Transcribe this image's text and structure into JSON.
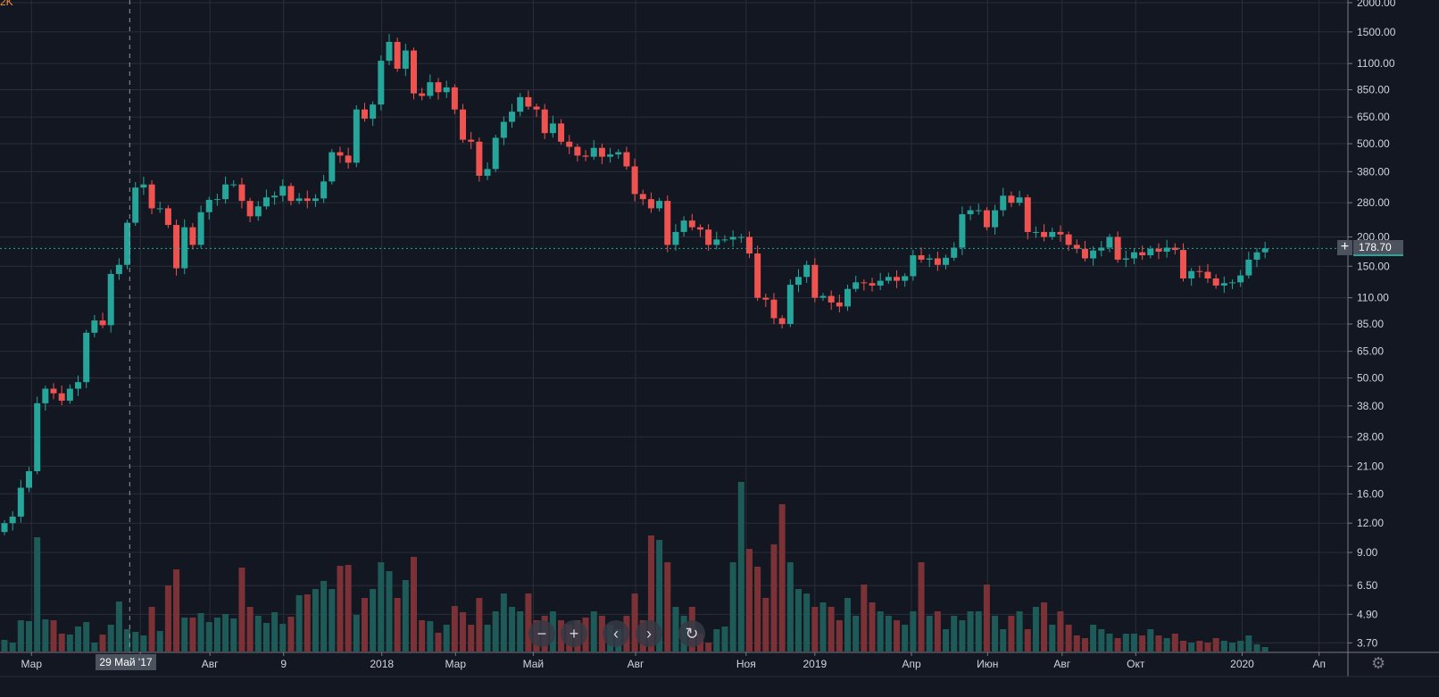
{
  "symbol_label": "2K",
  "colors": {
    "background": "#131722",
    "grid": "#2a2e39",
    "up": "#26a69a",
    "down": "#ef5350",
    "up_volume": "#1e5a57",
    "down_volume": "#7a3236",
    "axis_text": "#d1d4dc"
  },
  "chart_data": {
    "type": "candlestick",
    "scale": "log",
    "interval": "weekly",
    "ylim": [
      3.4,
      2050
    ],
    "close": [
      12,
      12.8,
      17,
      20,
      39,
      45,
      43,
      40,
      45,
      48,
      78,
      88,
      84,
      139,
      152,
      230,
      325,
      335,
      265,
      265,
      225,
      147,
      220,
      185,
      255,
      288,
      290,
      335,
      335,
      285,
      245,
      270,
      295,
      300,
      330,
      285,
      292,
      285,
      292,
      345,
      460,
      445,
      415,
      700,
      640,
      735,
      1130,
      1360,
      1045,
      1250,
      820,
      800,
      915,
      830,
      870,
      700,
      520,
      510,
      365,
      390,
      530,
      620,
      685,
      790,
      720,
      700,
      555,
      610,
      510,
      485,
      445,
      440,
      480,
      440,
      450,
      460,
      400,
      305,
      290,
      265,
      285,
      185,
      210,
      235,
      220,
      215,
      185,
      195,
      195,
      200,
      200,
      170,
      110,
      108,
      90,
      85,
      125,
      135,
      152,
      110,
      112,
      105,
      101,
      120,
      128,
      127,
      124,
      130,
      135,
      130,
      136,
      167,
      160,
      162,
      152,
      163,
      180,
      250,
      260,
      260,
      220,
      260,
      300,
      280,
      295,
      210,
      210,
      200,
      210,
      205,
      185,
      178,
      162,
      175,
      180,
      200,
      160,
      162,
      172,
      167,
      178,
      173,
      180,
      176,
      133,
      143,
      142,
      133,
      124,
      127,
      128,
      137,
      160,
      172,
      178.7
    ],
    "first_open": 11,
    "volume": [
      13,
      10,
      35,
      34,
      128,
      36,
      35,
      20,
      19,
      28,
      33,
      10,
      19,
      30,
      56,
      25,
      22,
      18,
      50,
      23,
      74,
      92,
      38,
      38,
      43,
      33,
      38,
      42,
      37,
      94,
      50,
      40,
      32,
      44,
      31,
      39,
      63,
      64,
      70,
      79,
      70,
      96,
      97,
      41,
      60,
      70,
      100,
      90,
      60,
      80,
      106,
      35,
      34,
      21,
      30,
      51,
      44,
      30,
      60,
      30,
      45,
      65,
      50,
      45,
      65,
      35,
      40,
      45,
      35,
      30,
      35,
      38,
      45,
      40,
      30,
      25,
      40,
      65,
      35,
      130,
      125,
      100,
      50,
      40,
      50,
      20,
      10,
      25,
      28,
      100,
      190,
      115,
      95,
      60,
      120,
      165,
      100,
      70,
      65,
      50,
      55,
      50,
      35,
      60,
      40,
      75,
      55,
      45,
      40,
      35,
      30,
      45,
      100,
      40,
      45,
      25,
      40,
      35,
      45,
      45,
      75,
      40,
      25,
      40,
      45,
      25,
      50,
      55,
      30,
      45,
      30,
      18,
      15,
      30,
      25,
      20,
      15,
      20,
      20,
      18,
      25,
      18,
      15,
      20,
      12,
      10,
      12,
      10,
      15,
      12,
      10,
      12,
      18,
      8,
      5
    ],
    "price_ticks": [
      {
        "value": 2000,
        "label": "2000.00"
      },
      {
        "value": 1500,
        "label": "1500.00"
      },
      {
        "value": 1100,
        "label": "1100.00"
      },
      {
        "value": 850,
        "label": "850.00"
      },
      {
        "value": 650,
        "label": "650.00"
      },
      {
        "value": 500,
        "label": "500.00"
      },
      {
        "value": 380,
        "label": "380.00"
      },
      {
        "value": 280,
        "label": "280.00"
      },
      {
        "value": 200,
        "label": "200.00"
      },
      {
        "value": 150,
        "label": "150.00"
      },
      {
        "value": 110,
        "label": "110.00"
      },
      {
        "value": 85,
        "label": "85.00"
      },
      {
        "value": 65,
        "label": "65.00"
      },
      {
        "value": 50,
        "label": "50.00"
      },
      {
        "value": 38,
        "label": "38.00"
      },
      {
        "value": 28,
        "label": "28.00"
      },
      {
        "value": 21,
        "label": "21.00"
      },
      {
        "value": 16,
        "label": "16.00"
      },
      {
        "value": 12,
        "label": "12.00"
      },
      {
        "value": 9,
        "label": "9.00"
      },
      {
        "value": 6.5,
        "label": "6.50"
      },
      {
        "value": 4.9,
        "label": "4.90"
      },
      {
        "value": 3.7,
        "label": "3.70"
      }
    ],
    "time_ticks": [
      {
        "week": 3.3,
        "label": "Мар"
      },
      {
        "week": 16.6,
        "label": ""
      },
      {
        "week": 25.1,
        "label": "Авг"
      },
      {
        "week": 34.1,
        "label": "9"
      },
      {
        "week": 46.1,
        "label": "2018"
      },
      {
        "week": 55.1,
        "label": "Мар"
      },
      {
        "week": 64.6,
        "label": "Май"
      },
      {
        "week": 77.1,
        "label": "Авг"
      },
      {
        "week": 90.6,
        "label": "Ноя"
      },
      {
        "week": 99.0,
        "label": "2019"
      },
      {
        "week": 110.8,
        "label": "Апр"
      },
      {
        "week": 120.1,
        "label": "Июн"
      },
      {
        "week": 129.2,
        "label": "Авг"
      },
      {
        "week": 138.2,
        "label": "Окт"
      },
      {
        "week": 151.2,
        "label": "2020"
      },
      {
        "week": 160.6,
        "label": "Ап"
      }
    ],
    "last_price": 178.7,
    "last_price_label": "178.70",
    "crosshair": {
      "week": 15.3,
      "label": "29 Май '17"
    }
  },
  "controls": {
    "zoom_out": "−",
    "zoom_in": "+",
    "scroll_left": "‹",
    "scroll_right": "›",
    "reset": "↻",
    "add": "+",
    "settings": "⚙"
  }
}
